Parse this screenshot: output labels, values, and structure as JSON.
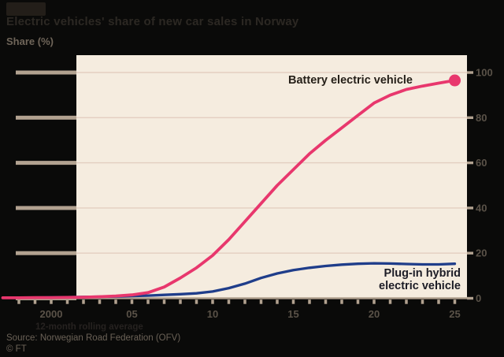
{
  "header": {
    "title": "Electric vehicles' share of new car sales in Norway",
    "axis_title": "Share (%)"
  },
  "annotations": {
    "bev_label": "Battery electric vehicle",
    "phev_line1": "Plug-in hybrid",
    "phev_line2": "electric vehicle"
  },
  "footer": {
    "note": "12-month rolling average",
    "source": "Source: Norwegian Road Federation (OFV)",
    "credit": "© FT"
  },
  "colors": {
    "background": "#0a0a09",
    "plot_background": "#f5ecdf",
    "gridline": "#e3cec0",
    "axis_tan": "#b2a290",
    "tick_label": "#5a5248",
    "bev_line": "#e8376d",
    "phev_line": "#1f3d8a"
  },
  "chart_data": {
    "type": "line",
    "title": "Electric vehicles' share of new car sales in Norway",
    "xlabel": "",
    "ylabel": "Share (%)",
    "ylim": [
      0,
      100
    ],
    "grid": "horizontal",
    "legend_position": "inline-annotations",
    "y_ticks": [
      100,
      80,
      60,
      40,
      20,
      0
    ],
    "x_minor_tick_years": [
      1998,
      1999,
      2000,
      2001,
      2002,
      2003,
      2004,
      2005,
      2006,
      2007,
      2008,
      2009,
      2010,
      2011,
      2012,
      2013,
      2014,
      2015,
      2016,
      2017,
      2018,
      2019,
      2020,
      2021,
      2022,
      2023,
      2024,
      2025
    ],
    "x_axis_labels": [
      {
        "year": 2000,
        "label": "2000"
      },
      {
        "year": 2005,
        "label": "05"
      },
      {
        "year": 2010,
        "label": "10"
      },
      {
        "year": 2015,
        "label": "15"
      },
      {
        "year": 2020,
        "label": "20"
      },
      {
        "year": 2025,
        "label": "25"
      }
    ],
    "years": [
      1997,
      1998,
      1999,
      2000,
      2001,
      2002,
      2003,
      2004,
      2005,
      2006,
      2007,
      2008,
      2009,
      2010,
      2011,
      2012,
      2013,
      2014,
      2015,
      2016,
      2017,
      2018,
      2019,
      2020,
      2021,
      2022,
      2023,
      2024,
      2025
    ],
    "series": [
      {
        "name": "Battery electric vehicle",
        "color": "#e8376d",
        "end_dot": true,
        "values": [
          0.2,
          0.2,
          0.3,
          0.3,
          0.4,
          0.5,
          0.7,
          1.0,
          1.5,
          2.5,
          5.0,
          9.0,
          13.5,
          19.0,
          26.0,
          34.0,
          42.0,
          50.0,
          57.0,
          64.0,
          70.0,
          75.5,
          81.0,
          86.5,
          90.0,
          92.5,
          94.0,
          95.3,
          96.5
        ]
      },
      {
        "name": "Plug-in hybrid electric vehicle",
        "color": "#1f3d8a",
        "end_dot": false,
        "values": [
          0.2,
          0.2,
          0.3,
          0.4,
          0.5,
          0.6,
          0.7,
          0.8,
          1.0,
          1.2,
          1.5,
          1.8,
          2.2,
          3.0,
          4.5,
          6.5,
          9.0,
          11.0,
          12.5,
          13.5,
          14.3,
          14.9,
          15.3,
          15.5,
          15.4,
          15.2,
          15.0,
          15.0,
          15.3
        ]
      }
    ]
  }
}
